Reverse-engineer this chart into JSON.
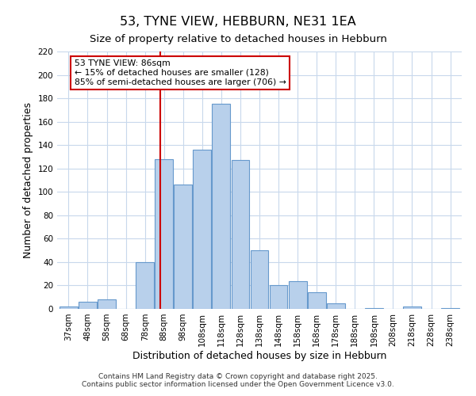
{
  "title": "53, TYNE VIEW, HEBBURN, NE31 1EA",
  "subtitle": "Size of property relative to detached houses in Hebburn",
  "xlabel": "Distribution of detached houses by size in Hebburn",
  "ylabel": "Number of detached properties",
  "bar_labels": [
    "37sqm",
    "48sqm",
    "58sqm",
    "68sqm",
    "78sqm",
    "88sqm",
    "98sqm",
    "108sqm",
    "118sqm",
    "128sqm",
    "138sqm",
    "148sqm",
    "158sqm",
    "168sqm",
    "178sqm",
    "188sqm",
    "198sqm",
    "208sqm",
    "218sqm",
    "228sqm",
    "238sqm"
  ],
  "bar_values": [
    2,
    6,
    8,
    0,
    40,
    128,
    106,
    136,
    175,
    127,
    50,
    20,
    24,
    14,
    5,
    0,
    1,
    0,
    2,
    0,
    1
  ],
  "bar_color": "#b8d0eb",
  "bar_edge_color": "#6699cc",
  "vline_color": "#cc0000",
  "ylim": [
    0,
    220
  ],
  "yticks": [
    0,
    20,
    40,
    60,
    80,
    100,
    120,
    140,
    160,
    180,
    200,
    220
  ],
  "annotation_title": "53 TYNE VIEW: 86sqm",
  "annotation_line1": "← 15% of detached houses are smaller (128)",
  "annotation_line2": "85% of semi-detached houses are larger (706) →",
  "annotation_box_color": "#ffffff",
  "annotation_box_edge": "#cc0000",
  "footer_line1": "Contains HM Land Registry data © Crown copyright and database right 2025.",
  "footer_line2": "Contains public sector information licensed under the Open Government Licence v3.0.",
  "bg_color": "#ffffff",
  "grid_color": "#c8d8ec",
  "title_fontsize": 11.5,
  "subtitle_fontsize": 9.5,
  "axis_label_fontsize": 9,
  "tick_fontsize": 7.5,
  "footer_fontsize": 6.5,
  "annotation_fontsize": 7.8
}
